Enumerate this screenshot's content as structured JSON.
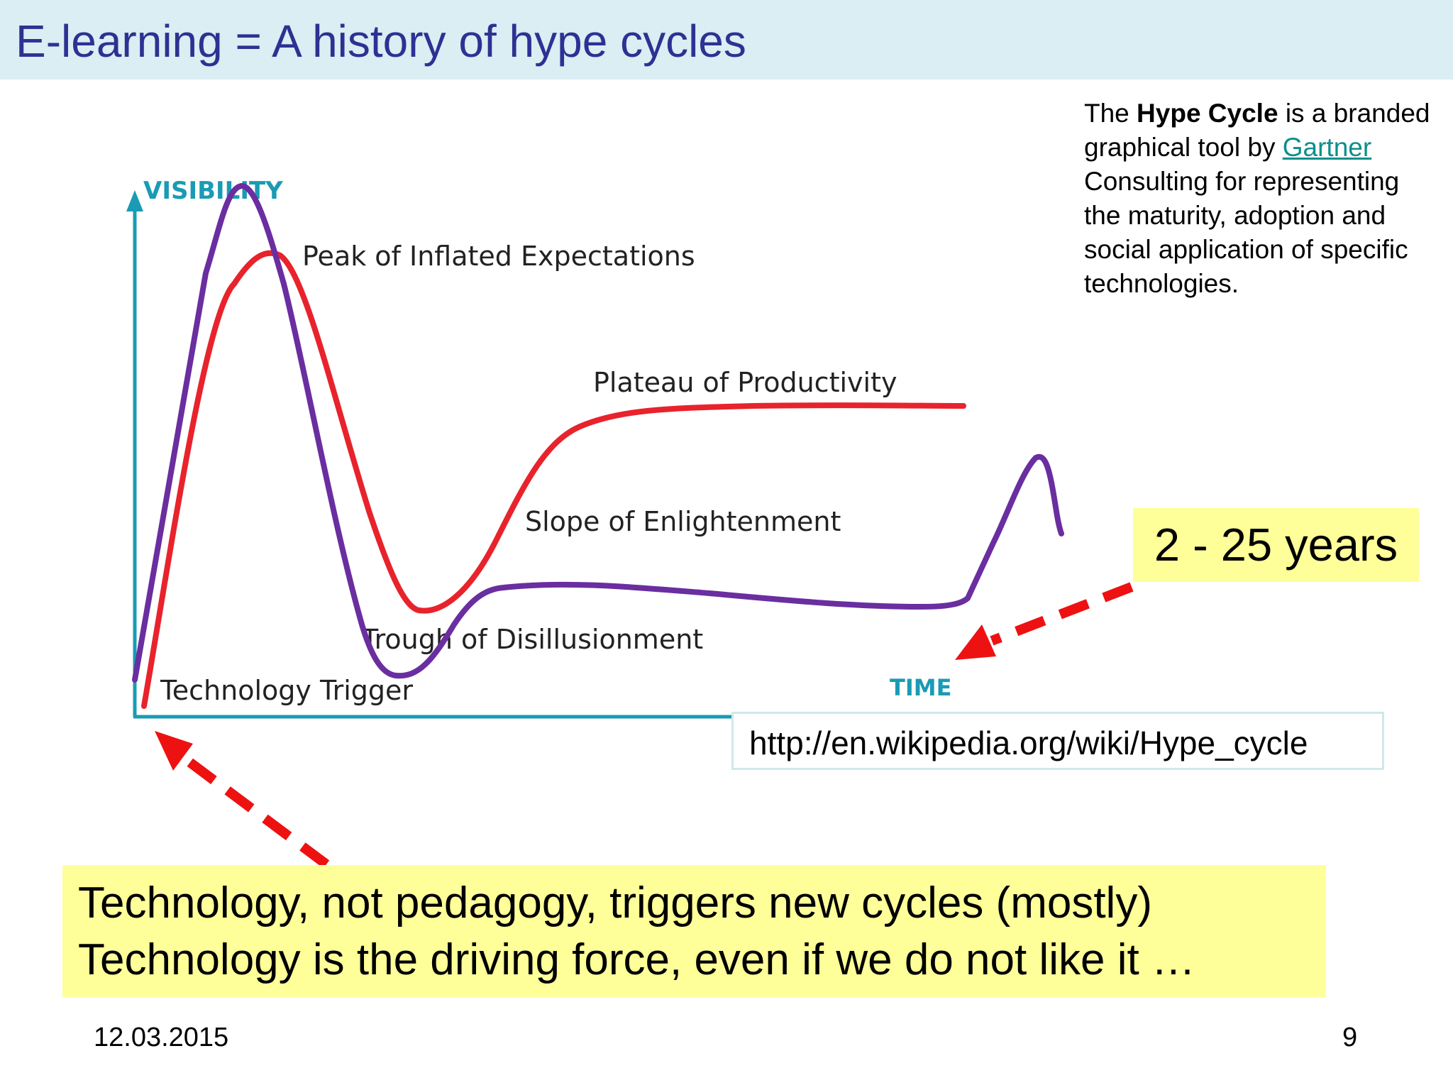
{
  "title": "E-learning = A history of hype cycles",
  "diagram": {
    "y_axis_label": "VISIBILITY",
    "x_axis_label": "TIME",
    "phases": {
      "peak": "Peak of Inflated Expectations",
      "plateau": "Plateau of Productivity",
      "slope": "Slope of Enlightenment",
      "trough": "Trough of Disillusionment",
      "trigger": "Technology Trigger"
    },
    "colors": {
      "axis": "#1a9bb4",
      "hype_curve": "#e8232c",
      "elearning_curve": "#6a2ea0",
      "arrow": "#ee1111"
    }
  },
  "description": {
    "prefix": "The ",
    "bold_term": "Hype Cycle",
    "middle": " is a branded graphical tool by ",
    "link_text": "Gartner",
    "suffix": " Consulting for representing the maturity, adoption and social application of specific technologies."
  },
  "years_note": "2 - 25 years",
  "source_url": "http://en.wikipedia.org/wiki/Hype_cycle",
  "statement": {
    "line1": "Technology, not pedagogy, triggers new cycles (mostly)",
    "line2": "Technology is the driving force, even if we do not like it …"
  },
  "footer": {
    "date": "12.03.2015",
    "page": "9"
  }
}
